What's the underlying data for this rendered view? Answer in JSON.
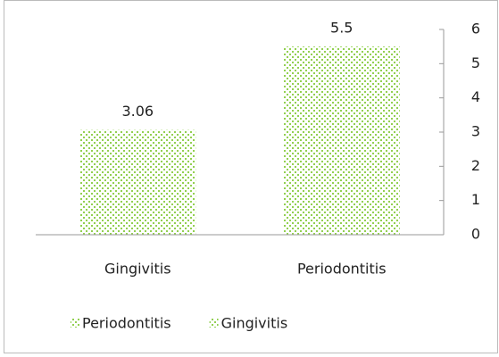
{
  "chart_data": {
    "type": "bar",
    "categories": [
      "Gingivitis",
      "Periodontitis"
    ],
    "series": [
      {
        "name": "Periodontitis",
        "color": "#92d050",
        "values": [
          null,
          5.5
        ]
      },
      {
        "name": "Gingivitis",
        "color": "#92d050",
        "values": [
          3.06,
          null
        ]
      }
    ],
    "ylim": [
      0,
      6
    ],
    "yticks": [
      0,
      1,
      2,
      3,
      4,
      5,
      6
    ],
    "y_axis_side": "right",
    "grid": false,
    "legend": "bottom"
  }
}
